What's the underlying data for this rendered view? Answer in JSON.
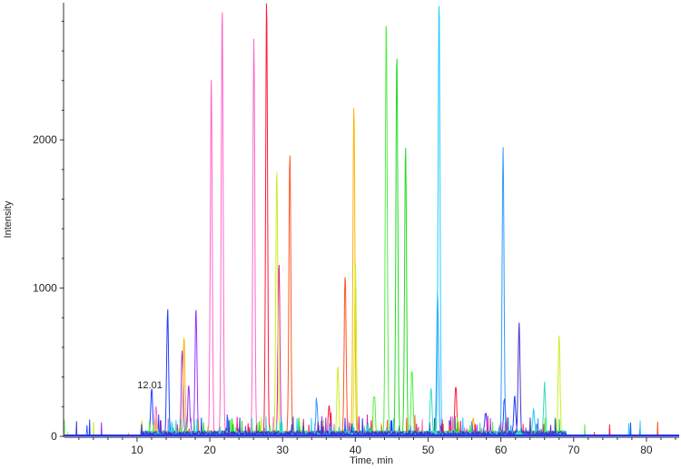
{
  "chart_data": {
    "type": "line",
    "title": "",
    "xlabel": "Time, min",
    "ylabel": "Intensity",
    "xlim": [
      0,
      84.5
    ],
    "ylim": [
      0,
      2925
    ],
    "x_ticks": [
      10,
      20,
      30,
      40,
      50,
      60,
      70,
      80
    ],
    "x_tick_labels": [
      "10",
      "20",
      "30",
      "40",
      "50",
      "60",
      "70",
      "80"
    ],
    "y_ticks": [
      0,
      1000,
      2000
    ],
    "y_tick_labels": [
      "0",
      "1000",
      "2000"
    ],
    "grid": false,
    "legend": "none",
    "annotations": [
      {
        "text": "12.01",
        "x": 12.01,
        "y": 300
      }
    ],
    "series": [
      {
        "color": "#1f3fff",
        "peaks": [
          {
            "rt": 12.01,
            "height": 300
          },
          {
            "rt": 14.2,
            "height": 838
          },
          {
            "rt": 57.9,
            "height": 140
          },
          {
            "rt": 60.5,
            "height": 250
          },
          {
            "rt": 61.9,
            "height": 250
          }
        ]
      },
      {
        "color": "#ff66cc",
        "peaks": [
          {
            "rt": 12.6,
            "height": 170
          },
          {
            "rt": 20.2,
            "height": 2405
          },
          {
            "rt": 21.7,
            "height": 2870
          },
          {
            "rt": 26.05,
            "height": 2667
          }
        ]
      },
      {
        "color": "#9933ff",
        "peaks": [
          {
            "rt": 16.2,
            "height": 575
          },
          {
            "rt": 17.1,
            "height": 330
          },
          {
            "rt": 18.1,
            "height": 850
          }
        ]
      },
      {
        "color": "#ffb300",
        "peaks": [
          {
            "rt": 16.45,
            "height": 660
          },
          {
            "rt": 39.8,
            "height": 2208
          },
          {
            "rt": 56.2,
            "height": 110
          }
        ]
      },
      {
        "color": "#ff1a3c",
        "peaks": [
          {
            "rt": 27.8,
            "height": 2930
          },
          {
            "rt": 36.4,
            "height": 185
          },
          {
            "rt": 53.8,
            "height": 330
          }
        ]
      },
      {
        "color": "#e61a99",
        "peaks": [
          {
            "rt": 29.5,
            "height": 1150
          }
        ]
      },
      {
        "color": "#ccee22",
        "peaks": [
          {
            "rt": 29.2,
            "height": 1786
          },
          {
            "rt": 37.6,
            "height": 445
          },
          {
            "rt": 40.0,
            "height": 1160
          },
          {
            "rt": 68.0,
            "height": 655
          }
        ]
      },
      {
        "color": "#ff5522",
        "peaks": [
          {
            "rt": 31.0,
            "height": 1883
          },
          {
            "rt": 38.6,
            "height": 1075
          }
        ]
      },
      {
        "color": "#3399ff",
        "peaks": [
          {
            "rt": 34.7,
            "height": 210
          },
          {
            "rt": 51.3,
            "height": 948
          },
          {
            "rt": 60.3,
            "height": 1920
          }
        ]
      },
      {
        "color": "#55ee44",
        "peaks": [
          {
            "rt": 42.6,
            "height": 260
          },
          {
            "rt": 44.25,
            "height": 2813
          },
          {
            "rt": 47.8,
            "height": 420
          }
        ]
      },
      {
        "color": "#22dd22",
        "peaks": [
          {
            "rt": 45.7,
            "height": 2566
          },
          {
            "rt": 46.9,
            "height": 1950
          }
        ]
      },
      {
        "color": "#22ccff",
        "peaks": [
          {
            "rt": 51.5,
            "height": 2930
          },
          {
            "rt": 64.5,
            "height": 160
          }
        ]
      },
      {
        "color": "#33ddbb",
        "peaks": [
          {
            "rt": 50.4,
            "height": 300
          },
          {
            "rt": 66.0,
            "height": 335
          }
        ]
      },
      {
        "color": "#4433cc",
        "peaks": [
          {
            "rt": 62.5,
            "height": 750
          }
        ]
      }
    ]
  }
}
